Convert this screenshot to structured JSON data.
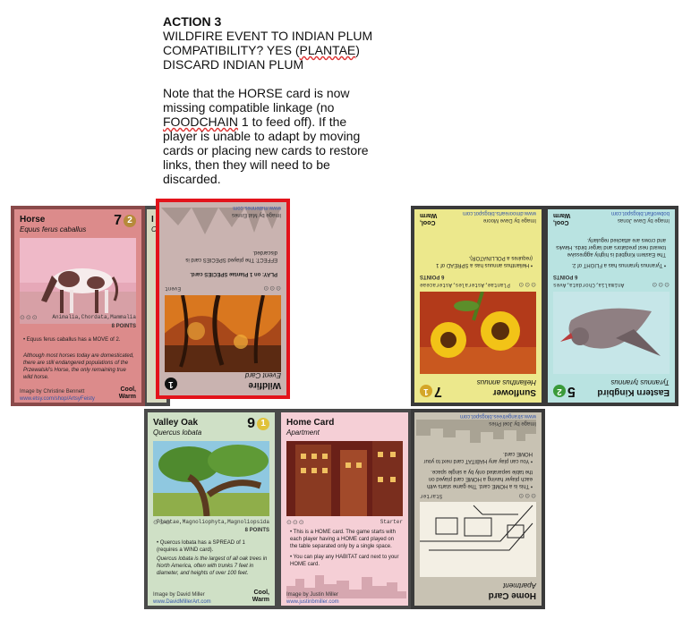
{
  "instructions": {
    "heading": "ACTION 3",
    "line1": "WILDFIRE EVENT TO INDIAN PLUM",
    "line2a": "COMPATIBILITY? YES (",
    "line2b": "PLANTAE",
    "line2c": ")",
    "line3": "DISCARD INDIAN PLUM",
    "note1": "Note that the HORSE card is now",
    "note2": "missing compatible linkage (no",
    "note3a": "FOODCHAIN",
    "note3b": " 1 to feed off).  If the",
    "note4": "player is unable to adapt by moving",
    "note5": "cards or placing new cards to restore",
    "note6": "links, then they will need to be",
    "note7": "discarded."
  },
  "cards": {
    "horse": {
      "title": "Horse",
      "latin": "Equus ferus caballus",
      "number": "7",
      "coin": "2",
      "taxonomy": "Animalia,Chordata,Mammalia",
      "points": "8 POINTS",
      "text1": "• Equus ferus caballus has a MOVE of 2.",
      "text2": "Although most horses today are domesticated, there are still endangered populations of the Przewalski's Horse, the only remaining true wild horse.",
      "credit": "Image by Christine Bennett",
      "url": "www.etsy.com/shop/ArtsyFeisty",
      "climate1": "Cool,",
      "climate2": "Warm"
    },
    "wildfire": {
      "title": "Wildfire",
      "subtitle": "Event Card",
      "coin": "1",
      "tag": "Event",
      "play": "PLAY: on 1 Plantae SPECIES card.",
      "effect": "EFFECT: The played SPECIES card is discarded.",
      "credit": "Image by Mat Ennes",
      "url": "www.matennes.com"
    },
    "sunflower": {
      "title": "Sunflower",
      "latin": "Helianthus annuus",
      "number": "7",
      "coin": "1",
      "taxonomy": "Plantae,Asterales,Asteraceae",
      "points": "6 POINTS",
      "text1": "• Helianthus annuus has a SPREAD of 1 (requires a POLLINATOR).",
      "credit": "Image by Dave Moore",
      "url": "www.dmoorearts.blogspot.com",
      "climate1": "Cool,",
      "climate2": "Warm"
    },
    "kingbird": {
      "title": "Eastern Kingbird",
      "latin": "Tyrannus tyrannus",
      "number": "5",
      "coin": "2",
      "taxonomy": "Animalia,Chordata,Aves",
      "points": "6 POINTS",
      "text1": "• Tyrannus tyrannus has a FLIGHT of 2.",
      "text2": "The Eastern Kingbird is highly aggressive toward nest predators and larger birds. Hawks and crows are attacked regularly.",
      "credit": "Image by Dave Jonas",
      "url": "bobwolfart.blogspot.com",
      "climate1": "Cool,",
      "climate2": "Warm"
    },
    "valley_oak": {
      "title": "Valley Oak",
      "latin": "Quercus lobata",
      "number": "9",
      "coin": "1",
      "taxonomy": "Plantae,Magnoliophyta,Magnoliopsida",
      "points": "8 POINTS",
      "text1": "• Quercus lobata has a SPREAD of 1 (requires a WIND card).",
      "text2": "Quercus lobata is the largest of all oak trees in North America, often with trunks 7 feet in diameter, and heights of over 100 feet.",
      "credit": "Image by David Miller",
      "url": "www.DavidMillerArt.com",
      "climate1": "Cool,",
      "climate2": "Warm"
    },
    "home_card": {
      "title": "Home Card",
      "subtitle": "Apartment",
      "tag": "Starter",
      "text1": "• This is a HOME card. The game starts with each player having a HOME card played on the table separated only by a single space.",
      "text2": "• You can play any HABITAT card next to your HOME card.",
      "credit": "Image by Justin Miller",
      "url": "www.justinbmiller.com"
    },
    "home_card_rev": {
      "title": "Home Card",
      "subtitle": "Apartment",
      "tag": "Starter",
      "text1": "• This is a HOME card. The game starts with each player having a HOME card played on the table separated only by a single space.",
      "text2": "• You can play any HABITAT card next to your HOME card.",
      "credit": "Image by Joel Pries",
      "url": "www.strangetrees.blogspot.com"
    },
    "partial": {
      "title": "I",
      "subtitle": "O"
    }
  },
  "colors": {
    "horse_bg": "#dc8b8b",
    "wildfire_border": "#e3131b",
    "wildfire_bg": "#c9b3b0",
    "sunflower_bg": "#ece88c",
    "kingbird_bg": "#b9e3e1",
    "oak_bg": "#cfe0c6",
    "home_bg": "#f5cfd6",
    "home_rev_bg": "#c8c2b3"
  }
}
